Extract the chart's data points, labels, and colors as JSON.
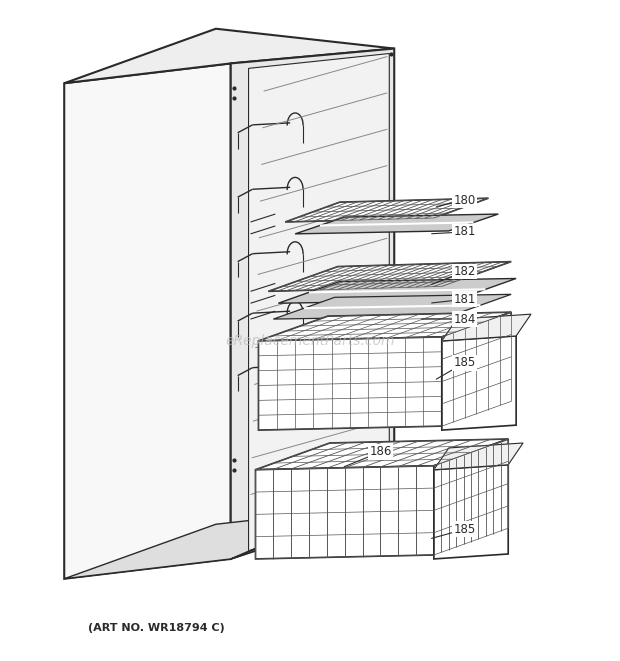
{
  "footer_text": "(ART NO. WR18794 C)",
  "watermark": "eReplacementParts.com",
  "background_color": "#ffffff",
  "line_color": "#2a2a2a",
  "grid_color": "#555555",
  "light_color": "#aaaaaa",
  "fig_width": 6.2,
  "fig_height": 6.61,
  "dpi": 100
}
